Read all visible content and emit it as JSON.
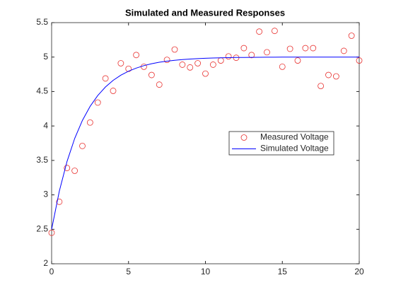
{
  "chart_data": {
    "type": "line",
    "title": "Simulated and Measured Responses",
    "x": [
      0,
      0.5,
      1,
      1.5,
      2,
      2.5,
      3,
      3.5,
      4,
      4.5,
      5,
      5.5,
      6,
      6.5,
      7,
      7.5,
      8,
      8.5,
      9,
      9.5,
      10,
      10.5,
      11,
      11.5,
      12,
      12.5,
      13,
      13.5,
      14,
      14.5,
      15,
      15.5,
      16,
      16.5,
      17,
      17.5,
      18,
      18.5,
      19,
      19.5,
      20
    ],
    "series": [
      {
        "name": "Measured Voltage",
        "color": "#e8312f",
        "marker": "circle",
        "line": false,
        "values": [
          2.45,
          2.9,
          3.39,
          3.35,
          3.71,
          4.05,
          4.34,
          4.69,
          4.51,
          4.91,
          4.83,
          5.03,
          4.86,
          4.74,
          4.6,
          4.96,
          5.11,
          4.89,
          4.85,
          4.91,
          4.76,
          4.89,
          4.95,
          5.01,
          4.99,
          5.13,
          5.03,
          5.37,
          5.07,
          5.38,
          4.86,
          5.12,
          4.95,
          5.13,
          5.13,
          4.58,
          4.74,
          4.72,
          5.09,
          5.31,
          4.95
        ]
      },
      {
        "name": "Simulated Voltage",
        "color": "#0000ff",
        "marker": "none",
        "line": true,
        "values": [
          2.5,
          3.053,
          3.484,
          3.819,
          4.08,
          4.284,
          4.442,
          4.566,
          4.662,
          4.737,
          4.795,
          4.84,
          4.876,
          4.903,
          4.925,
          4.941,
          4.954,
          4.964,
          4.972,
          4.978,
          4.983,
          4.987,
          4.99,
          4.992,
          4.994,
          4.995,
          4.996,
          4.997,
          4.998,
          4.998,
          4.999,
          4.999,
          4.999,
          4.999,
          5.0,
          5.0,
          5.0,
          5.0,
          5.0,
          5.0,
          5.0
        ]
      }
    ],
    "xlim": [
      0,
      20
    ],
    "xticks": [
      0,
      5,
      10,
      15,
      20
    ],
    "ylim": [
      2,
      5.5
    ],
    "yticks": [
      2,
      2.5,
      3,
      3.5,
      4,
      4.5,
      5,
      5.5
    ],
    "grid": false,
    "legend": "east"
  }
}
